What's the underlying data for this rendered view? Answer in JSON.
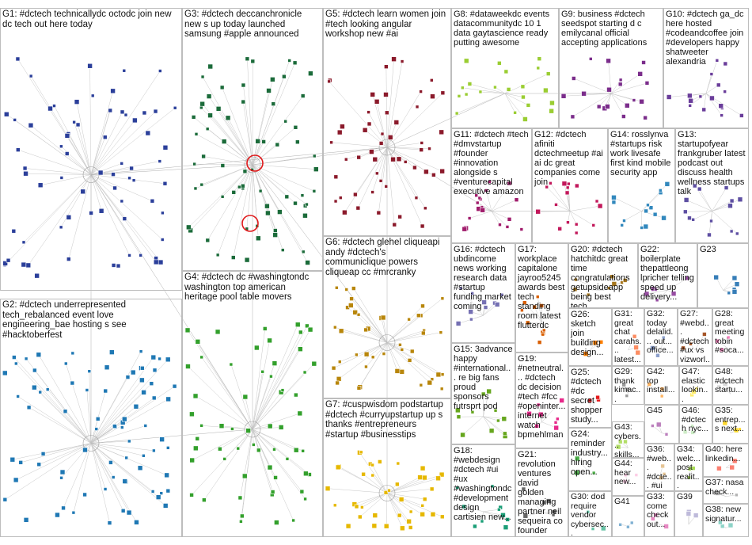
{
  "groups": [
    {
      "id": "G1",
      "label": "G1: #dctech technicallydc octodc join new dc tech out here today",
      "color": "#2b3f9a"
    },
    {
      "id": "G2",
      "label": "G2: #dctech underrepresented tech_rebalanced event love engineering_bae hosting s see #hacktoberfest",
      "color": "#1f78b4"
    },
    {
      "id": "G3",
      "label": "G3: #dctech deccanchronicle new s up today launched samsung #apple announced",
      "color": "#1b6b3a"
    },
    {
      "id": "G4",
      "label": "G4: #dctech dc #washingtondc washington top american heritage pool table movers",
      "color": "#33a02c"
    },
    {
      "id": "G5",
      "label": "G5: #dctech learn women join #tech looking angular workshop new #ai",
      "color": "#8b1a2b"
    },
    {
      "id": "G6",
      "label": "G6: #dctech glehel cliqueapi andy #dctech's communiclique powers cliqueap cc #mrcranky",
      "color": "#b8860b"
    },
    {
      "id": "G7",
      "label": "G7: #cuspwisdom podstartup #dctech #curryupstartup up s thanks #entrepreneurs #startup #businesstips",
      "color": "#e6b800"
    },
    {
      "id": "G8",
      "label": "G8: #dataweekdc events datacommunitydc 10 1 data gaytascience ready putting awesome",
      "color": "#9acd32"
    },
    {
      "id": "G9",
      "label": "G9: business #dctech seedspot starting d c emilycanal official accepting applications",
      "color": "#7b2d8b"
    },
    {
      "id": "G10",
      "label": "G10: #dctech ga_dc here hosted #codeandcoffee join #developers happy shatweeter alexandria",
      "color": "#6a3d9a"
    },
    {
      "id": "G11",
      "label": "G11: #dctech #tech #dmvstartup #founder #innovation alongside s #venturecapital executive amazon",
      "color": "#a01b6b"
    },
    {
      "id": "G12",
      "label": "G12: #dctech afiniti dctechmeetup #ai ai dc great companies come join",
      "color": "#c2185b"
    },
    {
      "id": "G13",
      "label": "G13: startupofyear frankgruber latest podcast out discuss health wellness startups talk",
      "color": "#5e4fa2"
    },
    {
      "id": "G14",
      "label": "G14: rosslynva #startups risk work livesafe first kind mobile security app",
      "color": "#3288bd"
    },
    {
      "id": "G15",
      "label": "G15: 3advance happy #international... re big fans proud sponsors futrsprt pod",
      "color": "#66a61e"
    },
    {
      "id": "G16",
      "label": "G16: #dctech ubdincome news working research data #startup funding market coming",
      "color": "#7570b3"
    },
    {
      "id": "G17",
      "label": "G17: workplace capitalone jayroo5245 awards best tech standing room latest flutterdc",
      "color": "#d95f02"
    },
    {
      "id": "G18",
      "label": "G18: #webdesign #dctech #ui #ux #washingtondc #development design cartisien new...",
      "color": "#1b9e77"
    },
    {
      "id": "G19",
      "label": "G19: #netneutral... #dctech dc decision #tech #fcc #openinter... internet watch bpmehlman",
      "color": "#e7298a"
    },
    {
      "id": "G20",
      "label": "G20: #dctech hatchitdc great time congratulations getupsideapp being best tech...",
      "color": "#a6761d"
    },
    {
      "id": "G21",
      "label": "G21: revolution ventures david golden managing partner neil sequeira co founder",
      "color": "#666666"
    },
    {
      "id": "G22",
      "label": "G22: boilerplate thepattleong lpricher telling speed up delivery...",
      "color": "#984ea3"
    },
    {
      "id": "G23",
      "label": "G23",
      "color": "#377eb8"
    },
    {
      "id": "G24",
      "label": "G24: reminder industry... hiring open...",
      "color": "#4daf4a"
    },
    {
      "id": "G25",
      "label": "G25: #dctech #dc secret shopper study...",
      "color": "#e41a1c"
    },
    {
      "id": "G26",
      "label": "G26: sketch join building design...",
      "color": "#ff7f00"
    },
    {
      "id": "G27",
      "label": "G27: #webd... #dctech #ux vs vizworl...",
      "color": "#a65628"
    },
    {
      "id": "G28",
      "label": "G28: great meeting tobin #soca...",
      "color": "#f781bf"
    },
    {
      "id": "G29",
      "label": "G29: thank kimac... opport... work s...",
      "color": "#999999"
    },
    {
      "id": "G30",
      "label": "G30: dod require vendor cybersec...",
      "color": "#66c2a5"
    },
    {
      "id": "G31",
      "label": "G31: great chat carahs... latest...",
      "color": "#fc8d62"
    },
    {
      "id": "G32",
      "label": "G32: today delalid... out... office...",
      "color": "#8da0cb"
    },
    {
      "id": "G33",
      "label": "G33: come check out...",
      "color": "#e78ac3"
    },
    {
      "id": "G34",
      "label": "G34: welc... post realit...",
      "color": "#a6d854"
    },
    {
      "id": "G35",
      "label": "G35: entrep... s next...",
      "color": "#ffd92f"
    },
    {
      "id": "G36",
      "label": "G36: #web... #dcte... #ui s...",
      "color": "#e5c494"
    },
    {
      "id": "G37",
      "label": "G37: nasa check...",
      "color": "#b3b3b3"
    },
    {
      "id": "G38",
      "label": "G38: new signatur...",
      "color": "#8dd3c7"
    },
    {
      "id": "G39",
      "label": "G39",
      "color": "#bebada"
    },
    {
      "id": "G40",
      "label": "G40: here linkedin...",
      "color": "#fb8072"
    },
    {
      "id": "G41",
      "label": "G41",
      "color": "#80b1d3"
    },
    {
      "id": "G42",
      "label": "G42: top install...",
      "color": "#fdb462"
    },
    {
      "id": "G43",
      "label": "G43: cybers... skills...",
      "color": "#b3de69"
    },
    {
      "id": "G44",
      "label": "G44: hear new...",
      "color": "#fccde5"
    },
    {
      "id": "G45",
      "label": "G45",
      "color": "#bc80bd"
    },
    {
      "id": "G46",
      "label": "G46: #dctech nyc...",
      "color": "#ccebc5"
    },
    {
      "id": "G47",
      "label": "G47: elastic lookin...",
      "color": "#ffed6f"
    },
    {
      "id": "G48",
      "label": "G48: #dctech startu...",
      "color": "#d9d9d9"
    }
  ]
}
